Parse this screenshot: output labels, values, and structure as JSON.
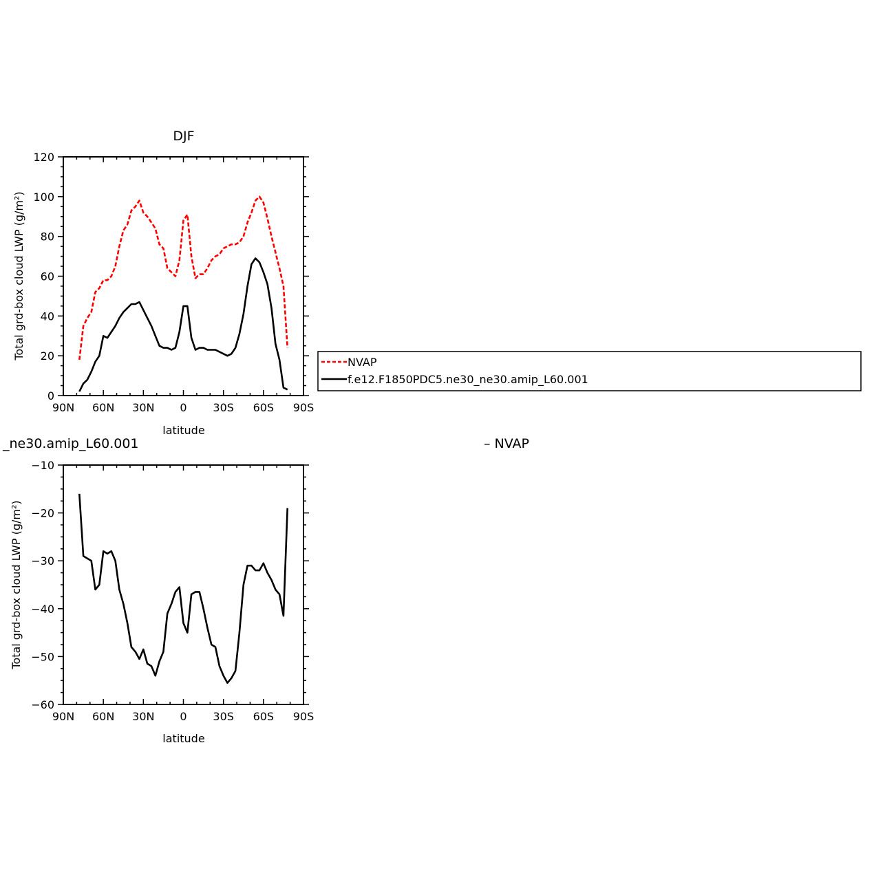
{
  "chart_data": [
    {
      "type": "line",
      "title": "DJF",
      "xlabel": "latitude",
      "ylabel": "Total grd-box cloud LWP (g/m²)",
      "xlim": [
        -90,
        90
      ],
      "ylim": [
        0,
        120
      ],
      "x_ticks": [
        -90,
        -60,
        -30,
        0,
        30,
        60,
        90
      ],
      "x_tick_labels": [
        "90N",
        "60N",
        "30N",
        "0",
        "30S",
        "60S",
        "90S"
      ],
      "y_ticks": [
        0,
        20,
        40,
        60,
        80,
        100,
        120
      ],
      "y_tick_labels": [
        "0",
        "20",
        "40",
        "60",
        "80",
        "100",
        "120"
      ],
      "series": [
        {
          "name": "NVAP",
          "color": "#ff0000",
          "dashed": true,
          "x": [
            -78,
            -75,
            -72,
            -69,
            -66,
            -63,
            -60,
            -57,
            -54,
            -51,
            -48,
            -45,
            -42,
            -39,
            -36,
            -33,
            -30,
            -27,
            -24,
            -21,
            -18,
            -15,
            -12,
            -9,
            -6,
            -3,
            0,
            3,
            6,
            9,
            12,
            15,
            18,
            21,
            24,
            27,
            30,
            33,
            36,
            39,
            42,
            45,
            48,
            51,
            54,
            57,
            60,
            63,
            66,
            69,
            72,
            75,
            78
          ],
          "values": [
            18,
            35,
            39,
            42,
            52,
            54,
            58,
            58,
            60,
            65,
            75,
            83,
            86,
            93,
            95,
            98,
            92,
            90,
            87,
            84,
            76,
            74,
            64,
            62,
            60,
            68,
            88,
            91,
            70,
            59,
            61,
            61,
            64,
            68,
            70,
            71,
            74,
            75,
            76,
            76,
            77,
            80,
            87,
            92,
            98,
            100,
            97,
            89,
            80,
            72,
            64,
            55,
            24
          ]
        },
        {
          "name": "f.e12.F1850PDC5.ne30_ne30.amip_L60.001",
          "color": "#000000",
          "dashed": false,
          "x": [
            -78,
            -75,
            -72,
            -69,
            -66,
            -63,
            -60,
            -57,
            -54,
            -51,
            -48,
            -45,
            -42,
            -39,
            -36,
            -33,
            -30,
            -27,
            -24,
            -21,
            -18,
            -15,
            -12,
            -9,
            -6,
            -3,
            0,
            3,
            6,
            9,
            12,
            15,
            18,
            21,
            24,
            27,
            30,
            33,
            36,
            39,
            42,
            45,
            48,
            51,
            54,
            57,
            60,
            63,
            66,
            69,
            72,
            75,
            78
          ],
          "values": [
            2,
            6,
            8,
            12,
            17,
            20,
            30,
            29,
            32,
            35,
            39,
            42,
            44,
            46,
            46,
            47,
            43,
            39,
            35,
            30,
            25,
            24,
            24,
            23,
            24,
            32,
            45,
            45,
            29,
            23,
            24,
            24,
            23,
            23,
            23,
            22,
            21,
            20,
            21,
            24,
            31,
            41,
            55,
            66,
            69,
            67,
            62,
            56,
            44,
            26,
            18,
            4,
            3
          ]
        }
      ],
      "legend": {
        "entries": [
          "NVAP",
          "f.e12.F1850PDC5.ne30_ne30.amip_L60.001"
        ],
        "placement": "right"
      }
    },
    {
      "type": "line",
      "title": "_ne30.amip_L60.001",
      "title_right": "–  NVAP",
      "xlabel": "latitude",
      "ylabel": "Total grd-box cloud LWP (g/m²)",
      "xlim": [
        -90,
        90
      ],
      "ylim": [
        -60,
        -10
      ],
      "x_ticks": [
        -90,
        -60,
        -30,
        0,
        30,
        60,
        90
      ],
      "x_tick_labels": [
        "90N",
        "60N",
        "30N",
        "0",
        "30S",
        "60S",
        "90S"
      ],
      "y_ticks": [
        -60,
        -50,
        -40,
        -30,
        -20,
        -10
      ],
      "y_tick_labels": [
        "−60",
        "−50",
        "−40",
        "−30",
        "−20",
        "−10"
      ],
      "series": [
        {
          "color": "#000000",
          "dashed": false,
          "x": [
            -78,
            -75,
            -72,
            -69,
            -66,
            -63,
            -60,
            -57,
            -54,
            -51,
            -48,
            -45,
            -42,
            -39,
            -36,
            -33,
            -30,
            -27,
            -24,
            -21,
            -18,
            -15,
            -12,
            -9,
            -6,
            -3,
            0,
            3,
            6,
            9,
            12,
            15,
            18,
            21,
            24,
            27,
            30,
            33,
            36,
            39,
            42,
            45,
            48,
            51,
            54,
            57,
            60,
            63,
            66,
            69,
            72,
            75,
            78
          ],
          "values": [
            -16,
            -29,
            -29.5,
            -30,
            -36,
            -35,
            -28,
            -28.5,
            -28,
            -30,
            -36,
            -39,
            -43,
            -48,
            -49,
            -50.5,
            -48.5,
            -51.5,
            -52,
            -54,
            -51,
            -49,
            -41,
            -39,
            -36.5,
            -35.5,
            -43,
            -45,
            -37,
            -36.5,
            -36.5,
            -40,
            -44,
            -47.5,
            -48,
            -52,
            -54,
            -55.5,
            -54.5,
            -53,
            -45,
            -35,
            -31,
            -31,
            -32,
            -32,
            -30.5,
            -32.5,
            -34,
            -36,
            -37,
            -41.5,
            -19
          ]
        }
      ]
    }
  ]
}
